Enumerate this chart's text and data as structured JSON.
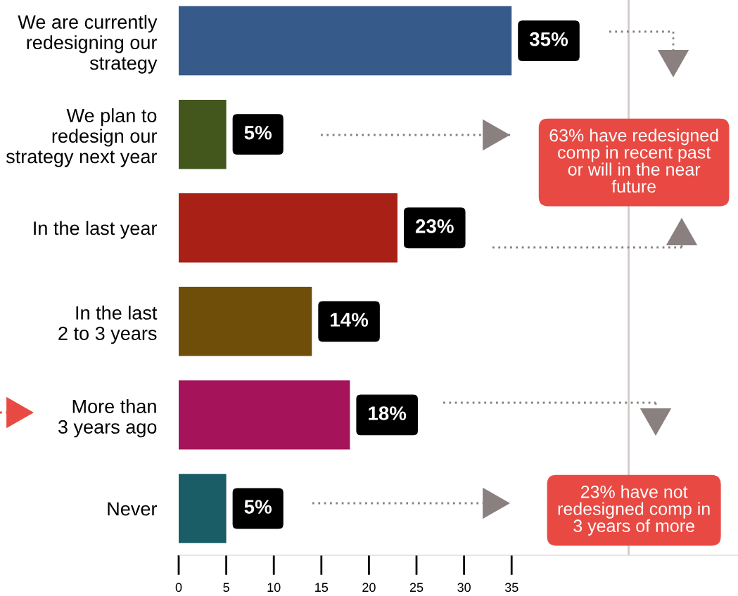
{
  "chart_data": {
    "type": "bar",
    "orientation": "horizontal",
    "categories": [
      "We are currently\nredesigning our\nstrategy",
      "We plan to\nredesign our\nstrategy next year",
      "In the last year",
      "In the last\n2 to 3 years",
      "More than\n3 years ago",
      "Never"
    ],
    "values": [
      35,
      5,
      23,
      14,
      18,
      5
    ],
    "colors": [
      "#365a8a",
      "#43561c",
      "#a82016",
      "#6e4e08",
      "#a5135a",
      "#1b5d66"
    ],
    "value_labels": [
      "35%",
      "5%",
      "23%",
      "14%",
      "18%",
      "5%"
    ],
    "xlim": [
      0,
      58.8
    ],
    "xticks": [
      0,
      5,
      10,
      15,
      20,
      25,
      30,
      35
    ],
    "grid": false,
    "legend": false,
    "ref_lines": [
      {
        "axis": "x",
        "value": 47.3,
        "color": "#d3cbc7"
      }
    ],
    "annotations": [
      "63% have redesigned\ncomp in recent past\nor will in the near\nfuture",
      "23% have not\nredesigned comp in\n3 years of more"
    ]
  }
}
